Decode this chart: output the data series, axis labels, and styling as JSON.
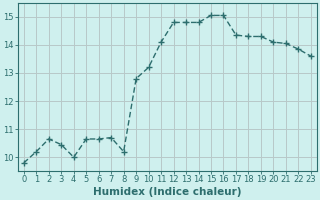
{
  "x": [
    0,
    1,
    2,
    3,
    4,
    5,
    6,
    7,
    8,
    9,
    10,
    11,
    12,
    13,
    14,
    15,
    16,
    17,
    18,
    19,
    20,
    21,
    22,
    23
  ],
  "y": [
    9.8,
    10.2,
    10.65,
    10.45,
    10.0,
    10.65,
    10.65,
    10.7,
    10.2,
    12.8,
    13.2,
    14.1,
    14.8,
    14.8,
    14.8,
    15.05,
    15.05,
    14.35,
    14.3,
    14.3,
    14.1,
    14.05,
    13.85,
    13.6
  ],
  "line_color": "#2d6e6e",
  "marker": "+",
  "marker_size": 4,
  "line_width": 1.0,
  "xlabel": "Humidex (Indice chaleur)",
  "xlim": [
    -0.5,
    23.5
  ],
  "ylim": [
    9.5,
    15.5
  ],
  "yticks": [
    10,
    11,
    12,
    13,
    14,
    15
  ],
  "xticks": [
    0,
    1,
    2,
    3,
    4,
    5,
    6,
    7,
    8,
    9,
    10,
    11,
    12,
    13,
    14,
    15,
    16,
    17,
    18,
    19,
    20,
    21,
    22,
    23
  ],
  "bg_color": "#cff0ee",
  "grid_color": "#b8c8c8",
  "axis_color": "#2d6e6e",
  "tick_label_color": "#2d6e6e",
  "xlabel_fontsize": 7.5,
  "tick_fontsize": 6.0
}
